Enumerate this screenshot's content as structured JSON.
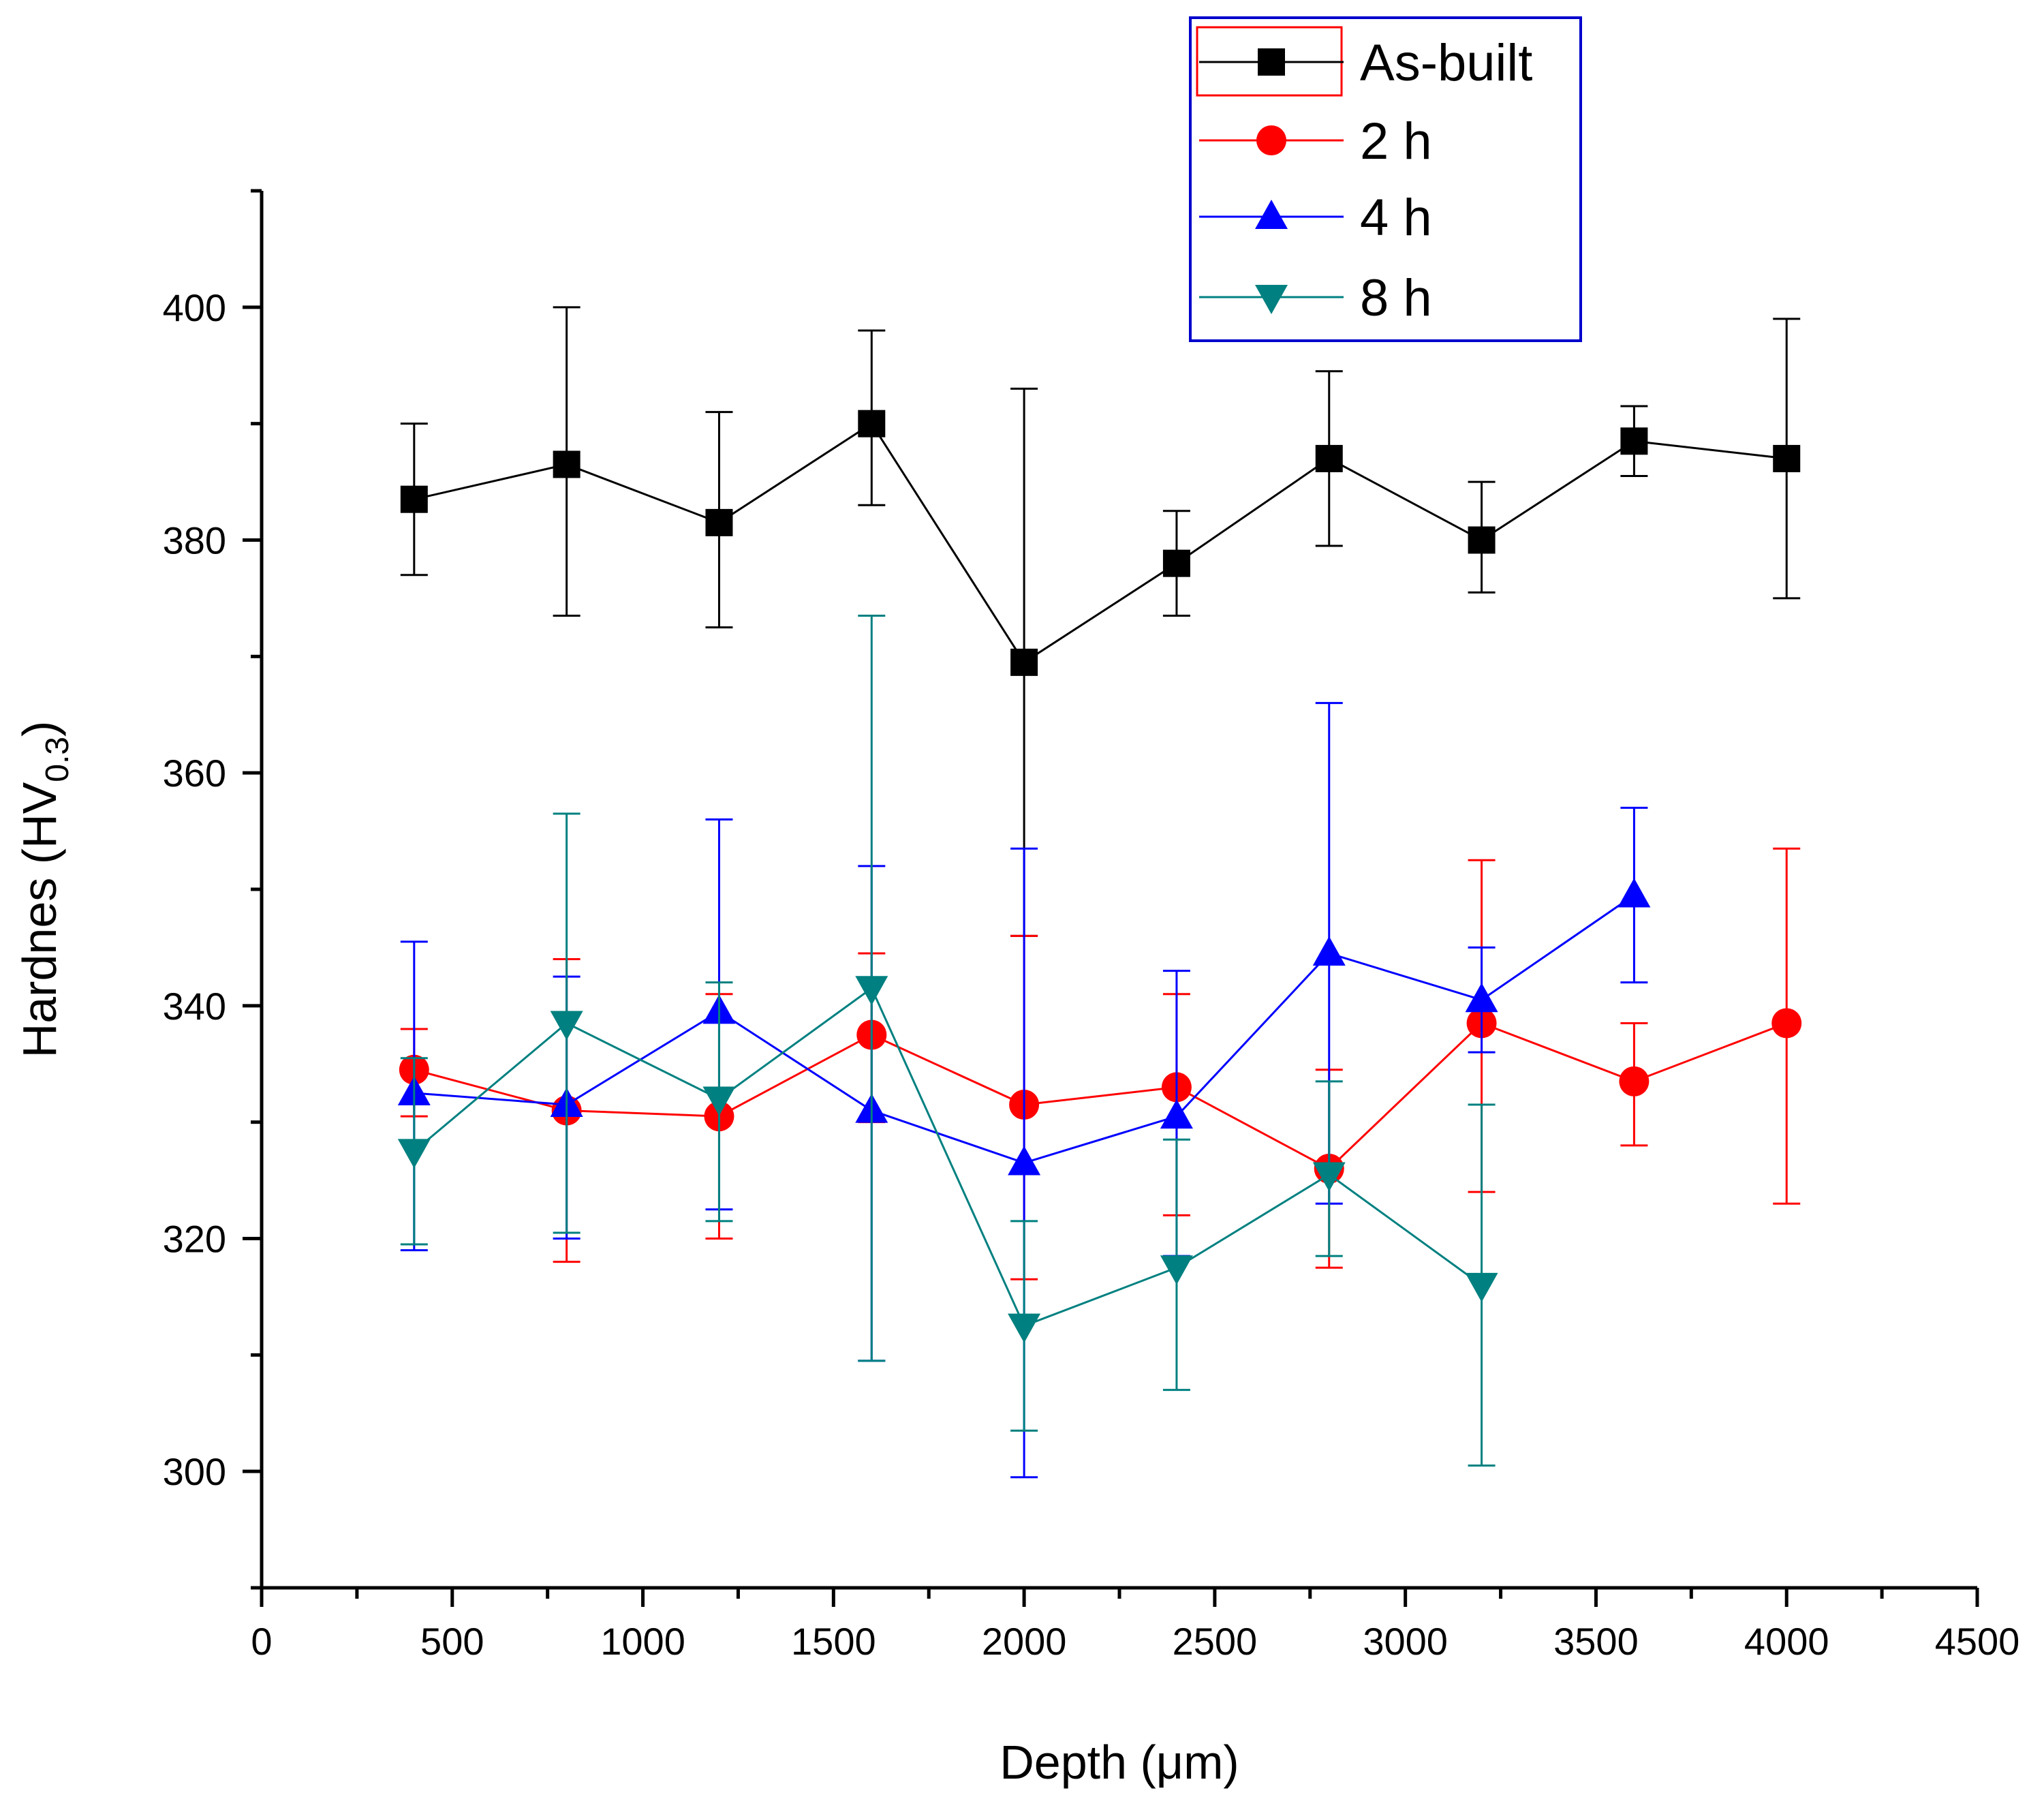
{
  "chart_data": {
    "type": "line",
    "title": "",
    "xlabel": "Depth (μm)",
    "ylabel": {
      "main": "Hardnes (HV",
      "sub": "0.3",
      "close": ")"
    },
    "xlim": [
      0,
      4500
    ],
    "ylim": [
      290,
      410
    ],
    "xticks": [
      0,
      500,
      1000,
      1500,
      2000,
      2500,
      3000,
      3500,
      4000,
      4500
    ],
    "yticks": [
      300,
      320,
      340,
      360,
      380,
      400
    ],
    "legend_position": "top-right",
    "series": [
      {
        "name": "As-built",
        "color": "#000000",
        "marker": "square",
        "x": [
          400,
          800,
          1200,
          1600,
          2000,
          2400,
          2800,
          3200,
          3600,
          4000
        ],
        "y": [
          383.5,
          386.5,
          381.5,
          390,
          369.5,
          378,
          387,
          380,
          388.5,
          387
        ],
        "err_low": [
          377,
          373.5,
          372.5,
          383,
          346,
          373.5,
          379.5,
          375.5,
          385.5,
          375
        ],
        "err_high": [
          390,
          400,
          391,
          398,
          393,
          382.5,
          394.5,
          385,
          391.5,
          399
        ]
      },
      {
        "name": "2 h",
        "color": "#ff0000",
        "marker": "circle",
        "x": [
          400,
          800,
          1200,
          1600,
          2000,
          2400,
          2800,
          3200,
          3600,
          4000
        ],
        "y": [
          334.5,
          331,
          330.5,
          337.5,
          331.5,
          333,
          326,
          338.5,
          333.5,
          338.5
        ],
        "err_low": [
          330.5,
          318,
          320,
          330,
          316.5,
          322,
          317.5,
          324,
          328,
          323
        ],
        "err_high": [
          338,
          344,
          341,
          344.5,
          346,
          341,
          334.5,
          352.5,
          338.5,
          353.5
        ]
      },
      {
        "name": "4 h",
        "color": "#0000ff",
        "marker": "triangle-up",
        "x": [
          400,
          800,
          1200,
          1600,
          2000,
          2400,
          2800,
          3200,
          3600
        ],
        "y": [
          332.5,
          331.5,
          339.5,
          331,
          326.5,
          330.5,
          344.5,
          340.5,
          349.5
        ],
        "err_low": [
          319,
          320,
          322.5,
          309.5,
          299.5,
          318.5,
          323,
          336,
          342
        ],
        "err_high": [
          345.5,
          342.5,
          356,
          352,
          353.5,
          343,
          366,
          345,
          357
        ]
      },
      {
        "name": "8 h",
        "color": "#008080",
        "marker": "triangle-down",
        "x": [
          400,
          800,
          1200,
          1600,
          2000,
          2400,
          2800,
          3200
        ],
        "y": [
          327.5,
          338.5,
          332,
          341.5,
          312.5,
          317.5,
          325.5,
          316
        ],
        "err_low": [
          319.5,
          320.5,
          321.5,
          309.5,
          303.5,
          307,
          318.5,
          300.5
        ],
        "err_high": [
          335.5,
          356.5,
          342,
          373.5,
          321.5,
          328.5,
          333.5,
          331.5
        ]
      }
    ]
  }
}
